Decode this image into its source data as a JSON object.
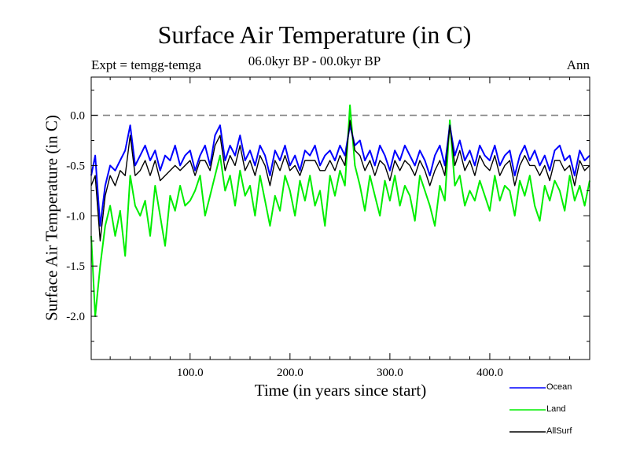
{
  "chart_data": {
    "type": "line",
    "title": "Surface Air Temperature (in C)",
    "subtitle": "06.0kyr BP - 00.0kyr BP",
    "experiment": "Expt = temgg-temga",
    "season": "Ann",
    "xlabel": "Time (in years since start)",
    "ylabel": "Surface Air Temperature (in C)",
    "xlim": [
      1,
      500
    ],
    "ylim": [
      -2.43,
      0.38
    ],
    "xticks": [
      100,
      200,
      300,
      400
    ],
    "xtick_labels": [
      "100.0",
      "200.0",
      "300.0",
      "400.0"
    ],
    "yticks": [
      0.0,
      -0.5,
      -1.0,
      -1.5,
      -2.0
    ],
    "ytick_labels": [
      "0.0",
      "-0.5",
      "-1.0",
      "-1.5",
      "-2.0"
    ],
    "reference_line": {
      "y": 0.0,
      "style": "dashed",
      "color": "#808080"
    },
    "legend_position": "bottom-right",
    "series": [
      {
        "name": "Ocean",
        "color": "#0000ff",
        "x": [
          1,
          5,
          10,
          15,
          20,
          25,
          30,
          35,
          40,
          45,
          50,
          55,
          60,
          65,
          70,
          75,
          80,
          85,
          90,
          95,
          100,
          105,
          110,
          115,
          120,
          125,
          130,
          135,
          140,
          145,
          150,
          155,
          160,
          165,
          170,
          175,
          180,
          185,
          190,
          195,
          200,
          205,
          210,
          215,
          220,
          225,
          230,
          235,
          240,
          245,
          250,
          255,
          260,
          265,
          270,
          275,
          280,
          285,
          290,
          295,
          300,
          305,
          310,
          315,
          320,
          325,
          330,
          335,
          340,
          345,
          350,
          355,
          360,
          365,
          370,
          375,
          380,
          385,
          390,
          395,
          400,
          405,
          410,
          415,
          420,
          425,
          430,
          435,
          440,
          445,
          450,
          455,
          460,
          465,
          470,
          475,
          480,
          485,
          490,
          495,
          500
        ],
        "values": [
          -0.6,
          -0.4,
          -1.1,
          -0.7,
          -0.5,
          -0.55,
          -0.45,
          -0.35,
          -0.1,
          -0.5,
          -0.4,
          -0.3,
          -0.45,
          -0.35,
          -0.55,
          -0.4,
          -0.45,
          -0.3,
          -0.5,
          -0.4,
          -0.35,
          -0.55,
          -0.4,
          -0.3,
          -0.5,
          -0.2,
          -0.1,
          -0.45,
          -0.3,
          -0.4,
          -0.2,
          -0.45,
          -0.35,
          -0.5,
          -0.3,
          -0.4,
          -0.6,
          -0.35,
          -0.45,
          -0.3,
          -0.5,
          -0.4,
          -0.55,
          -0.35,
          -0.4,
          -0.3,
          -0.5,
          -0.4,
          -0.35,
          -0.45,
          -0.3,
          -0.4,
          -0.1,
          -0.3,
          -0.25,
          -0.45,
          -0.35,
          -0.5,
          -0.3,
          -0.4,
          -0.55,
          -0.35,
          -0.45,
          -0.3,
          -0.4,
          -0.5,
          -0.35,
          -0.45,
          -0.6,
          -0.4,
          -0.3,
          -0.5,
          -0.1,
          -0.4,
          -0.25,
          -0.45,
          -0.35,
          -0.5,
          -0.3,
          -0.4,
          -0.45,
          -0.3,
          -0.5,
          -0.4,
          -0.35,
          -0.6,
          -0.4,
          -0.3,
          -0.45,
          -0.35,
          -0.5,
          -0.4,
          -0.55,
          -0.35,
          -0.3,
          -0.45,
          -0.4,
          -0.6,
          -0.35,
          -0.45,
          -0.4
        ]
      },
      {
        "name": "Land",
        "color": "#00ee00",
        "x": [
          1,
          5,
          10,
          15,
          20,
          25,
          30,
          35,
          40,
          45,
          50,
          55,
          60,
          65,
          70,
          75,
          80,
          85,
          90,
          95,
          100,
          105,
          110,
          115,
          120,
          125,
          130,
          135,
          140,
          145,
          150,
          155,
          160,
          165,
          170,
          175,
          180,
          185,
          190,
          195,
          200,
          205,
          210,
          215,
          220,
          225,
          230,
          235,
          240,
          245,
          250,
          255,
          260,
          265,
          270,
          275,
          280,
          285,
          290,
          295,
          300,
          305,
          310,
          315,
          320,
          325,
          330,
          335,
          340,
          345,
          350,
          355,
          360,
          365,
          370,
          375,
          380,
          385,
          390,
          395,
          400,
          405,
          410,
          415,
          420,
          425,
          430,
          435,
          440,
          445,
          450,
          455,
          460,
          465,
          470,
          475,
          480,
          485,
          490,
          495,
          500
        ],
        "values": [
          -1.2,
          -2.0,
          -1.5,
          -1.1,
          -0.9,
          -1.2,
          -0.95,
          -1.4,
          -0.6,
          -0.9,
          -1.0,
          -0.85,
          -1.2,
          -0.7,
          -1.0,
          -1.3,
          -0.8,
          -0.95,
          -0.7,
          -0.9,
          -0.85,
          -0.75,
          -0.6,
          -1.0,
          -0.8,
          -0.6,
          -0.4,
          -0.75,
          -0.6,
          -0.9,
          -0.55,
          -0.8,
          -0.7,
          -1.0,
          -0.6,
          -0.85,
          -1.1,
          -0.8,
          -0.95,
          -0.6,
          -0.75,
          -1.0,
          -0.65,
          -0.85,
          -0.6,
          -0.9,
          -0.75,
          -1.1,
          -0.6,
          -0.8,
          -0.55,
          -0.7,
          0.1,
          -0.5,
          -0.7,
          -0.95,
          -0.6,
          -0.8,
          -1.0,
          -0.65,
          -0.85,
          -0.6,
          -0.9,
          -0.7,
          -0.8,
          -1.05,
          -0.6,
          -0.75,
          -0.9,
          -1.1,
          -0.7,
          -0.85,
          -0.05,
          -0.7,
          -0.6,
          -0.9,
          -0.75,
          -0.85,
          -0.65,
          -0.8,
          -0.95,
          -0.6,
          -0.85,
          -0.7,
          -0.75,
          -1.0,
          -0.65,
          -0.8,
          -0.6,
          -0.9,
          -1.05,
          -0.7,
          -0.85,
          -0.65,
          -0.75,
          -0.95,
          -0.6,
          -0.85,
          -0.7,
          -0.9,
          -0.65
        ]
      },
      {
        "name": "AllSurf",
        "color": "#000000",
        "x": [
          1,
          5,
          10,
          15,
          20,
          25,
          30,
          35,
          40,
          45,
          50,
          55,
          60,
          65,
          70,
          75,
          80,
          85,
          90,
          95,
          100,
          105,
          110,
          115,
          120,
          125,
          130,
          135,
          140,
          145,
          150,
          155,
          160,
          165,
          170,
          175,
          180,
          185,
          190,
          195,
          200,
          205,
          210,
          215,
          220,
          225,
          230,
          235,
          240,
          245,
          250,
          255,
          260,
          265,
          270,
          275,
          280,
          285,
          290,
          295,
          300,
          305,
          310,
          315,
          320,
          325,
          330,
          335,
          340,
          345,
          350,
          355,
          360,
          365,
          370,
          375,
          380,
          385,
          390,
          395,
          400,
          405,
          410,
          415,
          420,
          425,
          430,
          435,
          440,
          445,
          450,
          455,
          460,
          465,
          470,
          475,
          480,
          485,
          490,
          495,
          500
        ],
        "values": [
          -0.7,
          -0.6,
          -1.25,
          -0.8,
          -0.6,
          -0.7,
          -0.55,
          -0.6,
          -0.2,
          -0.6,
          -0.55,
          -0.45,
          -0.6,
          -0.45,
          -0.65,
          -0.6,
          -0.55,
          -0.5,
          -0.55,
          -0.5,
          -0.45,
          -0.6,
          -0.45,
          -0.45,
          -0.55,
          -0.3,
          -0.2,
          -0.55,
          -0.4,
          -0.5,
          -0.3,
          -0.55,
          -0.45,
          -0.6,
          -0.4,
          -0.5,
          -0.7,
          -0.45,
          -0.55,
          -0.4,
          -0.55,
          -0.5,
          -0.6,
          -0.45,
          -0.45,
          -0.45,
          -0.55,
          -0.55,
          -0.45,
          -0.55,
          -0.4,
          -0.5,
          -0.05,
          -0.35,
          -0.4,
          -0.55,
          -0.45,
          -0.6,
          -0.45,
          -0.5,
          -0.65,
          -0.45,
          -0.55,
          -0.45,
          -0.5,
          -0.6,
          -0.45,
          -0.55,
          -0.7,
          -0.55,
          -0.45,
          -0.6,
          -0.1,
          -0.5,
          -0.35,
          -0.55,
          -0.45,
          -0.6,
          -0.4,
          -0.5,
          -0.55,
          -0.4,
          -0.6,
          -0.5,
          -0.45,
          -0.7,
          -0.5,
          -0.4,
          -0.5,
          -0.5,
          -0.6,
          -0.5,
          -0.65,
          -0.45,
          -0.45,
          -0.55,
          -0.5,
          -0.7,
          -0.45,
          -0.55,
          -0.5
        ]
      }
    ]
  }
}
